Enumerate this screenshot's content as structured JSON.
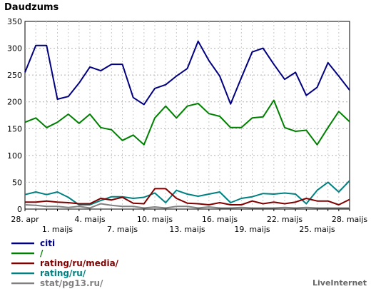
{
  "chart_data": {
    "type": "line",
    "title": "Daudzums",
    "ylim": [
      0,
      350
    ],
    "y_ticks": [
      "0",
      "50",
      "100",
      "150",
      "200",
      "250",
      "300",
      "350"
    ],
    "grid": true,
    "legend_position": "bottom-left",
    "x_tick_labels_row1": [
      {
        "i": 0,
        "label": "28. apr"
      },
      {
        "i": 6,
        "label": "4. maijs"
      },
      {
        "i": 12,
        "label": "10. maijs"
      },
      {
        "i": 18,
        "label": "16. maijs"
      },
      {
        "i": 24,
        "label": "22. maijs"
      },
      {
        "i": 30,
        "label": "28. maijs"
      }
    ],
    "x_tick_labels_row2": [
      {
        "i": 3,
        "label": "1. maijs"
      },
      {
        "i": 9,
        "label": "7. maijs"
      },
      {
        "i": 15,
        "label": "13. maijs"
      },
      {
        "i": 21,
        "label": "19. maijs"
      },
      {
        "i": 27,
        "label": "25. maijs"
      }
    ],
    "series": [
      {
        "name": "citi",
        "color": "#000080",
        "values": [
          255,
          305,
          305,
          205,
          210,
          235,
          265,
          258,
          270,
          270,
          208,
          195,
          225,
          232,
          248,
          262,
          313,
          277,
          248,
          196,
          245,
          293,
          300,
          270,
          242,
          255,
          212,
          227,
          273,
          248,
          222
        ]
      },
      {
        "name": "/",
        "color": "#008000",
        "values": [
          162,
          170,
          152,
          162,
          177,
          160,
          177,
          152,
          148,
          128,
          138,
          120,
          170,
          192,
          170,
          192,
          197,
          178,
          173,
          152,
          152,
          170,
          172,
          203,
          152,
          145,
          147,
          120,
          152,
          182,
          163
        ]
      },
      {
        "name": "rating/ru/media/",
        "color": "#800000",
        "values": [
          13,
          13,
          15,
          13,
          12,
          10,
          10,
          20,
          17,
          22,
          11,
          10,
          38,
          38,
          20,
          11,
          10,
          8,
          12,
          8,
          8,
          15,
          10,
          13,
          10,
          13,
          20,
          15,
          15,
          8,
          18
        ]
      },
      {
        "name": "rating/ru/",
        "color": "#008080",
        "values": [
          27,
          32,
          27,
          32,
          22,
          8,
          8,
          16,
          23,
          23,
          20,
          22,
          30,
          12,
          35,
          28,
          24,
          28,
          32,
          12,
          20,
          23,
          29,
          28,
          30,
          28,
          10,
          35,
          50,
          32,
          53
        ]
      },
      {
        "name": "stat/pg13.ru/",
        "color": "#808080",
        "values": [
          8,
          7,
          5,
          5,
          3,
          5,
          2,
          10,
          7,
          5,
          5,
          2,
          4,
          2,
          5,
          5,
          2,
          4,
          2,
          2,
          3,
          2,
          2,
          2,
          3,
          2,
          3,
          2,
          2,
          2,
          2
        ]
      }
    ]
  },
  "branding": {
    "text": "LiveInternet"
  }
}
